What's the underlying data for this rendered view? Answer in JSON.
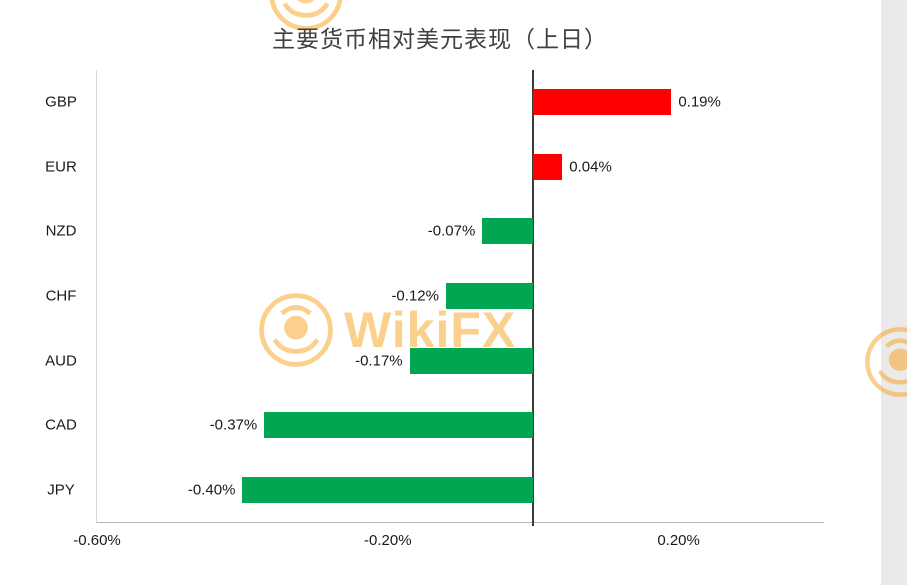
{
  "title": {
    "text": "主要货币相对美元表现（上日）"
  },
  "watermark": {
    "brand": "WikiFX",
    "color": "#F9A11B"
  },
  "chart_data": {
    "type": "bar",
    "orientation": "horizontal",
    "title": "主要货币相对美元表现（上日）",
    "categories": [
      "GBP",
      "EUR",
      "NZD",
      "CHF",
      "AUD",
      "CAD",
      "JPY"
    ],
    "values": [
      0.19,
      0.04,
      -0.07,
      -0.12,
      -0.17,
      -0.37,
      -0.4
    ],
    "value_labels": [
      "0.19%",
      "0.04%",
      "-0.07%",
      "-0.12%",
      "-0.17%",
      "-0.37%",
      "-0.40%"
    ],
    "x_ticks": [
      {
        "value": -0.6,
        "label": "-0.60%"
      },
      {
        "value": -0.2,
        "label": "-0.20%"
      },
      {
        "value": 0.2,
        "label": "0.20%"
      }
    ],
    "xlim": [
      -0.6,
      0.4
    ],
    "grid": false,
    "legend_position": "none",
    "colors": {
      "positive": "#FF0000",
      "negative": "#00A651",
      "zero_line": "#3a3a3a",
      "axis": "#b7b7b7"
    }
  }
}
